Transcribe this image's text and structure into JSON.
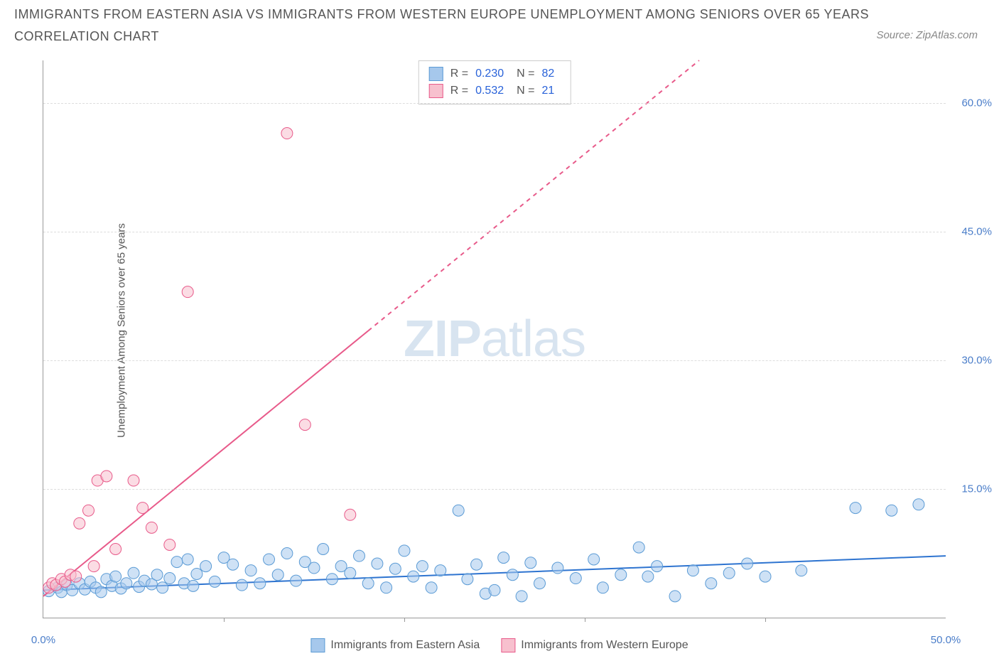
{
  "title_line1": "IMMIGRANTS FROM EASTERN ASIA VS IMMIGRANTS FROM WESTERN EUROPE UNEMPLOYMENT AMONG SENIORS OVER 65 YEARS",
  "title_line2": "CORRELATION CHART",
  "source": "Source: ZipAtlas.com",
  "y_axis_label": "Unemployment Among Seniors over 65 years",
  "watermark_a": "ZIP",
  "watermark_b": "atlas",
  "chart": {
    "type": "scatter",
    "background_color": "#ffffff",
    "grid_color": "#dddddd",
    "axis_color": "#999999",
    "xlim": [
      0,
      50
    ],
    "ylim": [
      0,
      65
    ],
    "xtick_labels": [
      "0.0%",
      "50.0%"
    ],
    "xtick_positions": [
      0,
      50
    ],
    "minor_xticks": [
      10,
      20,
      30,
      40
    ],
    "ytick_labels": [
      "15.0%",
      "30.0%",
      "45.0%",
      "60.0%"
    ],
    "ytick_positions": [
      15,
      30,
      45,
      60
    ],
    "series": [
      {
        "name": "Immigrants from Eastern Asia",
        "color_fill": "#a6c8ec",
        "color_stroke": "#5b9bd5",
        "fill_opacity": 0.55,
        "marker_radius": 8,
        "trend": {
          "slope": 0.08,
          "intercept": 3.2,
          "dash": "none",
          "color": "#2e74d0",
          "width": 2
        },
        "stats": {
          "R": "0.230",
          "N": "82"
        },
        "points": [
          [
            0.3,
            3.1
          ],
          [
            0.8,
            3.5
          ],
          [
            1.0,
            3.0
          ],
          [
            1.3,
            3.8
          ],
          [
            1.6,
            3.2
          ],
          [
            2.0,
            4.0
          ],
          [
            2.3,
            3.3
          ],
          [
            2.6,
            4.2
          ],
          [
            2.9,
            3.5
          ],
          [
            3.2,
            3.0
          ],
          [
            3.5,
            4.5
          ],
          [
            3.8,
            3.7
          ],
          [
            4.0,
            4.8
          ],
          [
            4.3,
            3.4
          ],
          [
            4.6,
            4.0
          ],
          [
            5.0,
            5.2
          ],
          [
            5.3,
            3.6
          ],
          [
            5.6,
            4.3
          ],
          [
            6.0,
            3.9
          ],
          [
            6.3,
            5.0
          ],
          [
            6.6,
            3.5
          ],
          [
            7.0,
            4.6
          ],
          [
            7.4,
            6.5
          ],
          [
            7.8,
            4.0
          ],
          [
            8.0,
            6.8
          ],
          [
            8.3,
            3.7
          ],
          [
            8.5,
            5.1
          ],
          [
            9.0,
            6.0
          ],
          [
            9.5,
            4.2
          ],
          [
            10.0,
            7.0
          ],
          [
            10.5,
            6.2
          ],
          [
            11.0,
            3.8
          ],
          [
            11.5,
            5.5
          ],
          [
            12.0,
            4.0
          ],
          [
            12.5,
            6.8
          ],
          [
            13.0,
            5.0
          ],
          [
            13.5,
            7.5
          ],
          [
            14.0,
            4.3
          ],
          [
            14.5,
            6.5
          ],
          [
            15.0,
            5.8
          ],
          [
            15.5,
            8.0
          ],
          [
            16.0,
            4.5
          ],
          [
            16.5,
            6.0
          ],
          [
            17.0,
            5.2
          ],
          [
            17.5,
            7.2
          ],
          [
            18.0,
            4.0
          ],
          [
            18.5,
            6.3
          ],
          [
            19.0,
            3.5
          ],
          [
            19.5,
            5.7
          ],
          [
            20.0,
            7.8
          ],
          [
            20.5,
            4.8
          ],
          [
            21.0,
            6.0
          ],
          [
            21.5,
            3.5
          ],
          [
            22.0,
            5.5
          ],
          [
            23.0,
            12.5
          ],
          [
            23.5,
            4.5
          ],
          [
            24.0,
            6.2
          ],
          [
            24.5,
            2.8
          ],
          [
            25.0,
            3.2
          ],
          [
            25.5,
            7.0
          ],
          [
            26.0,
            5.0
          ],
          [
            26.5,
            2.5
          ],
          [
            27.0,
            6.4
          ],
          [
            27.5,
            4.0
          ],
          [
            28.5,
            5.8
          ],
          [
            29.5,
            4.6
          ],
          [
            30.5,
            6.8
          ],
          [
            31.0,
            3.5
          ],
          [
            32.0,
            5.0
          ],
          [
            33.0,
            8.2
          ],
          [
            33.5,
            4.8
          ],
          [
            34.0,
            6.0
          ],
          [
            35.0,
            2.5
          ],
          [
            36.0,
            5.5
          ],
          [
            37.0,
            4.0
          ],
          [
            38.0,
            5.2
          ],
          [
            39.0,
            6.3
          ],
          [
            40.0,
            4.8
          ],
          [
            42.0,
            5.5
          ],
          [
            45.0,
            12.8
          ],
          [
            47.0,
            12.5
          ],
          [
            48.5,
            13.2
          ]
        ]
      },
      {
        "name": "Immigrants from Western Europe",
        "color_fill": "#f7c0ce",
        "color_stroke": "#e85a8a",
        "fill_opacity": 0.55,
        "marker_radius": 8,
        "trend": {
          "slope": 1.72,
          "intercept": 2.5,
          "dash": "6,6",
          "color": "#e85a8a",
          "width": 2
        },
        "stats": {
          "R": "0.532",
          "N": "21"
        },
        "points": [
          [
            0.3,
            3.5
          ],
          [
            0.5,
            4.0
          ],
          [
            0.7,
            3.8
          ],
          [
            1.0,
            4.5
          ],
          [
            1.2,
            4.2
          ],
          [
            1.5,
            5.0
          ],
          [
            2.0,
            11.0
          ],
          [
            2.5,
            12.5
          ],
          [
            3.0,
            16.0
          ],
          [
            3.5,
            16.5
          ],
          [
            4.0,
            8.0
          ],
          [
            5.0,
            16.0
          ],
          [
            5.5,
            12.8
          ],
          [
            6.0,
            10.5
          ],
          [
            7.0,
            8.5
          ],
          [
            8.0,
            38.0
          ],
          [
            13.5,
            56.5
          ],
          [
            14.5,
            22.5
          ],
          [
            17.0,
            12.0
          ],
          [
            1.8,
            4.8
          ],
          [
            2.8,
            6.0
          ]
        ]
      }
    ],
    "legend_bottom": [
      {
        "label": "Immigrants from Eastern Asia",
        "fill": "#a6c8ec",
        "stroke": "#5b9bd5"
      },
      {
        "label": "Immigrants from Western Europe",
        "fill": "#f7c0ce",
        "stroke": "#e85a8a"
      }
    ],
    "stats_box": [
      {
        "fill": "#a6c8ec",
        "stroke": "#5b9bd5",
        "R_label": "R =",
        "R": "0.230",
        "N_label": "N =",
        "N": "82"
      },
      {
        "fill": "#f7c0ce",
        "stroke": "#e85a8a",
        "R_label": "R =",
        "R": "0.532",
        "N_label": "N =",
        "N": "21"
      }
    ]
  }
}
